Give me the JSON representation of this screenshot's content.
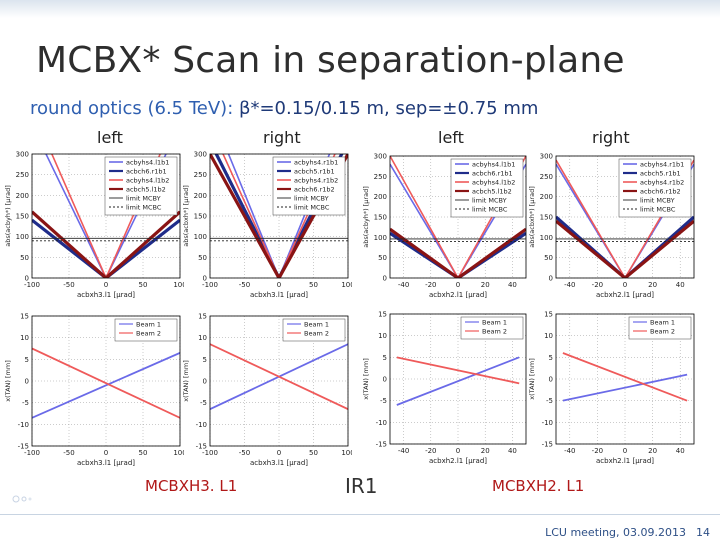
{
  "slide": {
    "title": "MCBX* Scan in separation-plane",
    "subtitle_prefix": "round optics (6.5 TeV): ",
    "subtitle_rest": "β*=0.15/0.15 m, sep=±0.75 mm",
    "side_labels": [
      "left",
      "right",
      "left",
      "right"
    ],
    "bottom_labels": {
      "l1": "MCBXH3. L1",
      "ir": "IR1",
      "l2": "MCBXH2. L1"
    },
    "footer": {
      "meeting": "LCU meeting, 03.09.2013",
      "page": "14"
    },
    "colors": {
      "blue_light": "#6a6ae8",
      "blue_dark": "#1f2c8a",
      "red_light": "#ef5a5a",
      "red_dark": "#8a1414"
    }
  },
  "chart_data": [
    {
      "type": "line",
      "panel": "top-1",
      "xlabel": "acbxh3.l1 [µrad]",
      "ylabel": "abs(acbyh*) [µrad]",
      "xlim": [
        -100,
        100
      ],
      "ylim": [
        0,
        300
      ],
      "xticks": [
        -100,
        -50,
        0,
        50,
        100
      ],
      "yticks": [
        0,
        50,
        100,
        150,
        200,
        250,
        300
      ],
      "legend": [
        "acbyhs4.l1b1",
        "acbch6.r1b1",
        "acbyhs4.l1b2",
        "acbch5.l1b2",
        "limit MCBY",
        "limit MCBC"
      ],
      "series": [
        {
          "name": "acbyhs4.l1b1",
          "x": [
            -100,
            0,
            100
          ],
          "y": [
            370,
            0,
            370
          ]
        },
        {
          "name": "acbch6.r1b1",
          "x": [
            -100,
            0,
            100
          ],
          "y": [
            140,
            0,
            140
          ]
        },
        {
          "name": "acbyhs4.l1b2",
          "x": [
            -100,
            0,
            100
          ],
          "y": [
            410,
            0,
            410
          ]
        },
        {
          "name": "acbch5.l1b2",
          "x": [
            -100,
            0,
            100
          ],
          "y": [
            160,
            0,
            160
          ]
        },
        {
          "name": "limit MCBY",
          "x": [
            -100,
            100
          ],
          "y": [
            96,
            96
          ]
        },
        {
          "name": "limit MCBC",
          "x": [
            -100,
            100
          ],
          "y": [
            90,
            90
          ]
        }
      ]
    },
    {
      "type": "line",
      "panel": "top-2",
      "xlabel": "acbxh3.l1 [µrad]",
      "ylabel": "abs(acbxh*) [µrad]",
      "xlim": [
        -100,
        100
      ],
      "ylim": [
        0,
        300
      ],
      "xticks": [
        -100,
        -50,
        0,
        50,
        100
      ],
      "yticks": [
        0,
        50,
        100,
        150,
        200,
        250,
        300
      ],
      "legend": [
        "acbyhs4.r1b1",
        "acbch5.r1b1",
        "acbyhs4.r1b2",
        "acbch6.r1b2",
        "limit MCBY",
        "limit MCBC"
      ],
      "series": [
        {
          "name": "acbyhs4.r1b1",
          "x": [
            -100,
            0,
            100
          ],
          "y": [
            410,
            0,
            410
          ]
        },
        {
          "name": "acbch5.r1b1",
          "x": [
            -100,
            0,
            100
          ],
          "y": [
            330,
            0,
            330
          ]
        },
        {
          "name": "acbyhs4.r1b2",
          "x": [
            -100,
            0,
            100
          ],
          "y": [
            370,
            0,
            370
          ]
        },
        {
          "name": "acbch6.r1b2",
          "x": [
            -100,
            0,
            100
          ],
          "y": [
            300,
            0,
            300
          ]
        },
        {
          "name": "limit MCBY",
          "x": [
            -100,
            100
          ],
          "y": [
            96,
            96
          ]
        },
        {
          "name": "limit MCBC",
          "x": [
            -100,
            100
          ],
          "y": [
            90,
            90
          ]
        }
      ]
    },
    {
      "type": "line",
      "panel": "top-3",
      "xlabel": "acbxh2.l1 [µrad]",
      "ylabel": "abs(acbyh*) [µrad]",
      "xlim": [
        -50,
        50
      ],
      "ylim": [
        0,
        300
      ],
      "xticks": [
        -40,
        -20,
        0,
        20,
        40
      ],
      "yticks": [
        0,
        50,
        100,
        150,
        200,
        250,
        300
      ],
      "legend": [
        "acbyhs4.l1b1",
        "acbch6.r1b1",
        "acbyhs4.l1b2",
        "acbch5.l1b2",
        "limit MCBY",
        "limit MCBC"
      ],
      "series": [
        {
          "name": "acbyhs4.l1b1",
          "x": [
            -50,
            0,
            50
          ],
          "y": [
            280,
            0,
            280
          ]
        },
        {
          "name": "acbch6.r1b1",
          "x": [
            -50,
            0,
            50
          ],
          "y": [
            110,
            0,
            110
          ]
        },
        {
          "name": "acbyhs4.l1b2",
          "x": [
            -50,
            0,
            50
          ],
          "y": [
            300,
            0,
            300
          ]
        },
        {
          "name": "acbch5.l1b2",
          "x": [
            -50,
            0,
            50
          ],
          "y": [
            120,
            0,
            120
          ]
        },
        {
          "name": "limit MCBY",
          "x": [
            -50,
            50
          ],
          "y": [
            96,
            96
          ]
        },
        {
          "name": "limit MCBC",
          "x": [
            -50,
            50
          ],
          "y": [
            90,
            90
          ]
        }
      ]
    },
    {
      "type": "line",
      "panel": "top-4",
      "xlabel": "acbxh2.l1 [µrad]",
      "ylabel": "abs(acbxh*) [µrad]",
      "xlim": [
        -50,
        50
      ],
      "ylim": [
        0,
        300
      ],
      "xticks": [
        -40,
        -20,
        0,
        20,
        40
      ],
      "yticks": [
        0,
        50,
        100,
        150,
        200,
        250,
        300
      ],
      "legend": [
        "acbyhs4.r1b1",
        "acbch5.r1b1",
        "acbyhs4.r1b2",
        "acbch6.r1b2",
        "limit MCBY",
        "limit MCBC"
      ],
      "series": [
        {
          "name": "acbyhs4.r1b1",
          "x": [
            -50,
            0,
            50
          ],
          "y": [
            280,
            0,
            280
          ]
        },
        {
          "name": "acbch5.r1b1",
          "x": [
            -50,
            0,
            50
          ],
          "y": [
            150,
            0,
            150
          ]
        },
        {
          "name": "acbyhs4.r1b2",
          "x": [
            -50,
            0,
            50
          ],
          "y": [
            290,
            0,
            290
          ]
        },
        {
          "name": "acbch6.r1b2",
          "x": [
            -50,
            0,
            50
          ],
          "y": [
            140,
            0,
            140
          ]
        },
        {
          "name": "limit MCBY",
          "x": [
            -50,
            50
          ],
          "y": [
            96,
            96
          ]
        },
        {
          "name": "limit MCBC",
          "x": [
            -50,
            50
          ],
          "y": [
            90,
            90
          ]
        }
      ]
    },
    {
      "type": "line",
      "panel": "bottom-1",
      "xlabel": "acbxh3.l1 [µrad]",
      "ylabel": "x(TAN) [mm]",
      "xlim": [
        -100,
        100
      ],
      "ylim": [
        -15,
        15
      ],
      "xticks": [
        -100,
        -50,
        0,
        50,
        100
      ],
      "yticks": [
        -15,
        -10,
        -5,
        0,
        5,
        10,
        15
      ],
      "legend": [
        "Beam 1",
        "Beam 2"
      ],
      "series": [
        {
          "name": "Beam 1",
          "x": [
            -100,
            100
          ],
          "y": [
            -8.5,
            6.5
          ]
        },
        {
          "name": "Beam 2",
          "x": [
            -100,
            100
          ],
          "y": [
            7.5,
            -8.5
          ]
        }
      ]
    },
    {
      "type": "line",
      "panel": "bottom-2",
      "xlabel": "acbxh3.l1 [µrad]",
      "ylabel": "x(TAN) [mm]",
      "xlim": [
        -100,
        100
      ],
      "ylim": [
        -15,
        15
      ],
      "xticks": [
        -100,
        -50,
        0,
        50,
        100
      ],
      "yticks": [
        -15,
        -10,
        -5,
        0,
        5,
        10,
        15
      ],
      "legend": [
        "Beam 1",
        "Beam 2"
      ],
      "series": [
        {
          "name": "Beam 1",
          "x": [
            -100,
            100
          ],
          "y": [
            -6.5,
            8.5
          ]
        },
        {
          "name": "Beam 2",
          "x": [
            -100,
            100
          ],
          "y": [
            8.5,
            -6.5
          ]
        }
      ]
    },
    {
      "type": "line",
      "panel": "bottom-3",
      "xlabel": "acbxh2.l1 [µrad]",
      "ylabel": "x(TAN) [mm]",
      "xlim": [
        -50,
        50
      ],
      "ylim": [
        -15,
        15
      ],
      "xticks": [
        -40,
        -20,
        0,
        20,
        40
      ],
      "yticks": [
        -15,
        -10,
        -5,
        0,
        5,
        10,
        15
      ],
      "legend": [
        "Beam 1",
        "Beam 2"
      ],
      "series": [
        {
          "name": "Beam 1",
          "x": [
            -45,
            45
          ],
          "y": [
            -6,
            5
          ]
        },
        {
          "name": "Beam 2",
          "x": [
            -45,
            45
          ],
          "y": [
            5,
            -1
          ]
        }
      ]
    },
    {
      "type": "line",
      "panel": "bottom-4",
      "xlabel": "acbxh2.l1 [µrad]",
      "ylabel": "x(TAN) [mm]",
      "xlim": [
        -50,
        50
      ],
      "ylim": [
        -15,
        15
      ],
      "xticks": [
        -40,
        -20,
        0,
        20,
        40
      ],
      "yticks": [
        -15,
        -10,
        -5,
        0,
        5,
        10,
        15
      ],
      "legend": [
        "Beam 1",
        "Beam 2"
      ],
      "series": [
        {
          "name": "Beam 1",
          "x": [
            -45,
            45
          ],
          "y": [
            -5,
            1
          ]
        },
        {
          "name": "Beam 2",
          "x": [
            -45,
            45
          ],
          "y": [
            6,
            -5
          ]
        }
      ]
    }
  ]
}
